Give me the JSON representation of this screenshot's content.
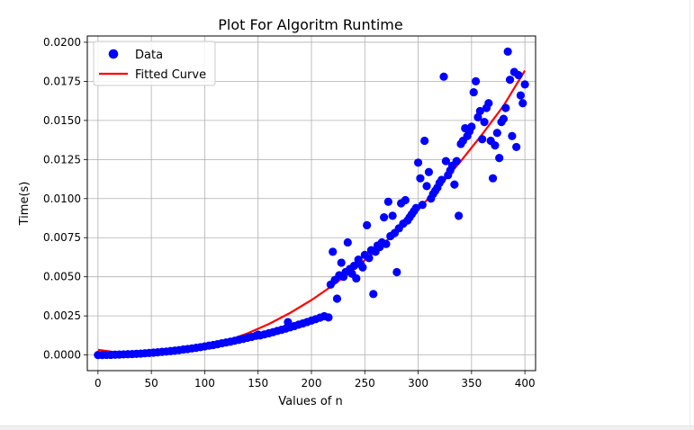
{
  "chart_data": {
    "type": "scatter",
    "title": "Plot For Algoritm Runtime",
    "xlabel": "Values of n",
    "ylabel": "Time(s)",
    "xlim": [
      -10,
      410
    ],
    "ylim": [
      -0.001,
      0.0204
    ],
    "xticks": [
      0,
      50,
      100,
      150,
      200,
      250,
      300,
      350,
      400
    ],
    "xtick_labels": [
      "0",
      "50",
      "100",
      "150",
      "200",
      "250",
      "300",
      "350",
      "400"
    ],
    "yticks": [
      0,
      0.0025,
      0.005,
      0.0075,
      0.01,
      0.0125,
      0.015,
      0.0175,
      0.02
    ],
    "ytick_labels": [
      "0.0000",
      "0.0025",
      "0.0050",
      "0.0075",
      "0.0100",
      "0.0125",
      "0.0150",
      "0.0175",
      "0.0200"
    ],
    "grid": true,
    "legend_position": "upper-left",
    "series": [
      {
        "name": "Data",
        "kind": "scatter",
        "color": "#0000ff",
        "points": [
          [
            0,
            0.0
          ],
          [
            4,
            0.0
          ],
          [
            8,
            1e-05
          ],
          [
            12,
            1e-05
          ],
          [
            16,
            2e-05
          ],
          [
            20,
            3e-05
          ],
          [
            24,
            4e-05
          ],
          [
            28,
            5e-05
          ],
          [
            32,
            6e-05
          ],
          [
            36,
            7e-05
          ],
          [
            40,
            9e-05
          ],
          [
            44,
            0.00011
          ],
          [
            48,
            0.00013
          ],
          [
            52,
            0.00015
          ],
          [
            56,
            0.00017
          ],
          [
            60,
            0.0002
          ],
          [
            64,
            0.00022
          ],
          [
            68,
            0.00025
          ],
          [
            72,
            0.00028
          ],
          [
            76,
            0.00031
          ],
          [
            80,
            0.00035
          ],
          [
            84,
            0.00038
          ],
          [
            88,
            0.00042
          ],
          [
            92,
            0.00046
          ],
          [
            96,
            0.0005
          ],
          [
            100,
            0.00055
          ],
          [
            104,
            0.0006
          ],
          [
            108,
            0.00064
          ],
          [
            112,
            0.00069
          ],
          [
            116,
            0.00075
          ],
          [
            120,
            0.0008
          ],
          [
            124,
            0.00085
          ],
          [
            128,
            0.00091
          ],
          [
            132,
            0.00097
          ],
          [
            136,
            0.00103
          ],
          [
            140,
            0.0011
          ],
          [
            144,
            0.00116
          ],
          [
            148,
            0.00123
          ],
          [
            150,
            0.0013
          ],
          [
            152,
            0.00125
          ],
          [
            156,
            0.00132
          ],
          [
            160,
            0.00139
          ],
          [
            164,
            0.00146
          ],
          [
            168,
            0.00154
          ],
          [
            172,
            0.00161
          ],
          [
            176,
            0.00169
          ],
          [
            178,
            0.0021
          ],
          [
            180,
            0.00177
          ],
          [
            184,
            0.00185
          ],
          [
            188,
            0.00194
          ],
          [
            192,
            0.00202
          ],
          [
            196,
            0.00211
          ],
          [
            200,
            0.0022
          ],
          [
            204,
            0.00229
          ],
          [
            208,
            0.00239
          ],
          [
            212,
            0.00248
          ],
          [
            216,
            0.0024
          ],
          [
            218,
            0.0045
          ],
          [
            220,
            0.0066
          ],
          [
            222,
            0.0048
          ],
          [
            224,
            0.0036
          ],
          [
            226,
            0.0051
          ],
          [
            228,
            0.0059
          ],
          [
            230,
            0.005
          ],
          [
            232,
            0.0053
          ],
          [
            234,
            0.0072
          ],
          [
            236,
            0.0055
          ],
          [
            238,
            0.0052
          ],
          [
            240,
            0.0057
          ],
          [
            242,
            0.0049
          ],
          [
            244,
            0.0061
          ],
          [
            246,
            0.0058
          ],
          [
            248,
            0.0056
          ],
          [
            250,
            0.0064
          ],
          [
            252,
            0.0083
          ],
          [
            254,
            0.0062
          ],
          [
            256,
            0.0067
          ],
          [
            258,
            0.0039
          ],
          [
            260,
            0.0066
          ],
          [
            262,
            0.007
          ],
          [
            264,
            0.0069
          ],
          [
            266,
            0.0072
          ],
          [
            268,
            0.0088
          ],
          [
            270,
            0.0071
          ],
          [
            272,
            0.0098
          ],
          [
            274,
            0.0076
          ],
          [
            276,
            0.0089
          ],
          [
            278,
            0.0078
          ],
          [
            280,
            0.0053
          ],
          [
            282,
            0.0081
          ],
          [
            284,
            0.0097
          ],
          [
            286,
            0.0084
          ],
          [
            288,
            0.0099
          ],
          [
            290,
            0.0086
          ],
          [
            292,
            0.0088
          ],
          [
            294,
            0.009
          ],
          [
            296,
            0.0092
          ],
          [
            298,
            0.0094
          ],
          [
            300,
            0.0123
          ],
          [
            302,
            0.0113
          ],
          [
            304,
            0.0096
          ],
          [
            306,
            0.0137
          ],
          [
            308,
            0.0108
          ],
          [
            310,
            0.0117
          ],
          [
            312,
            0.01
          ],
          [
            314,
            0.0103
          ],
          [
            316,
            0.0105
          ],
          [
            318,
            0.0107
          ],
          [
            320,
            0.011
          ],
          [
            322,
            0.0112
          ],
          [
            324,
            0.0178
          ],
          [
            326,
            0.0124
          ],
          [
            328,
            0.0115
          ],
          [
            330,
            0.0118
          ],
          [
            332,
            0.0121
          ],
          [
            334,
            0.0109
          ],
          [
            336,
            0.0124
          ],
          [
            338,
            0.0089
          ],
          [
            340,
            0.0135
          ],
          [
            342,
            0.0137
          ],
          [
            344,
            0.0145
          ],
          [
            346,
            0.014
          ],
          [
            348,
            0.0143
          ],
          [
            350,
            0.0146
          ],
          [
            352,
            0.0168
          ],
          [
            354,
            0.0175
          ],
          [
            356,
            0.0152
          ],
          [
            358,
            0.0156
          ],
          [
            360,
            0.0138
          ],
          [
            362,
            0.0149
          ],
          [
            364,
            0.0158
          ],
          [
            366,
            0.0161
          ],
          [
            368,
            0.0137
          ],
          [
            370,
            0.0113
          ],
          [
            372,
            0.0134
          ],
          [
            374,
            0.0142
          ],
          [
            376,
            0.0126
          ],
          [
            378,
            0.0149
          ],
          [
            380,
            0.0151
          ],
          [
            382,
            0.0158
          ],
          [
            384,
            0.0194
          ],
          [
            386,
            0.0176
          ],
          [
            388,
            0.014
          ],
          [
            390,
            0.0181
          ],
          [
            392,
            0.0133
          ],
          [
            394,
            0.0179
          ],
          [
            396,
            0.0166
          ],
          [
            398,
            0.0161
          ],
          [
            400,
            0.0173
          ]
        ]
      },
      {
        "name": "Fitted Curve",
        "kind": "line",
        "color": "#ff0000",
        "points": [
          [
            0,
            0.00033
          ],
          [
            20,
            0.00014
          ],
          [
            40,
            6e-05
          ],
          [
            60,
            0.0001
          ],
          [
            80,
            0.00025
          ],
          [
            100,
            0.00052
          ],
          [
            120,
            0.00089
          ],
          [
            140,
            0.00138
          ],
          [
            160,
            0.00198
          ],
          [
            180,
            0.00269
          ],
          [
            200,
            0.00351
          ],
          [
            220,
            0.00445
          ],
          [
            240,
            0.00549
          ],
          [
            260,
            0.00665
          ],
          [
            280,
            0.00792
          ],
          [
            300,
            0.0093
          ],
          [
            320,
            0.01079
          ],
          [
            340,
            0.0124
          ],
          [
            360,
            0.01411
          ],
          [
            380,
            0.01594
          ],
          [
            400,
            0.01819
          ]
        ]
      }
    ]
  }
}
